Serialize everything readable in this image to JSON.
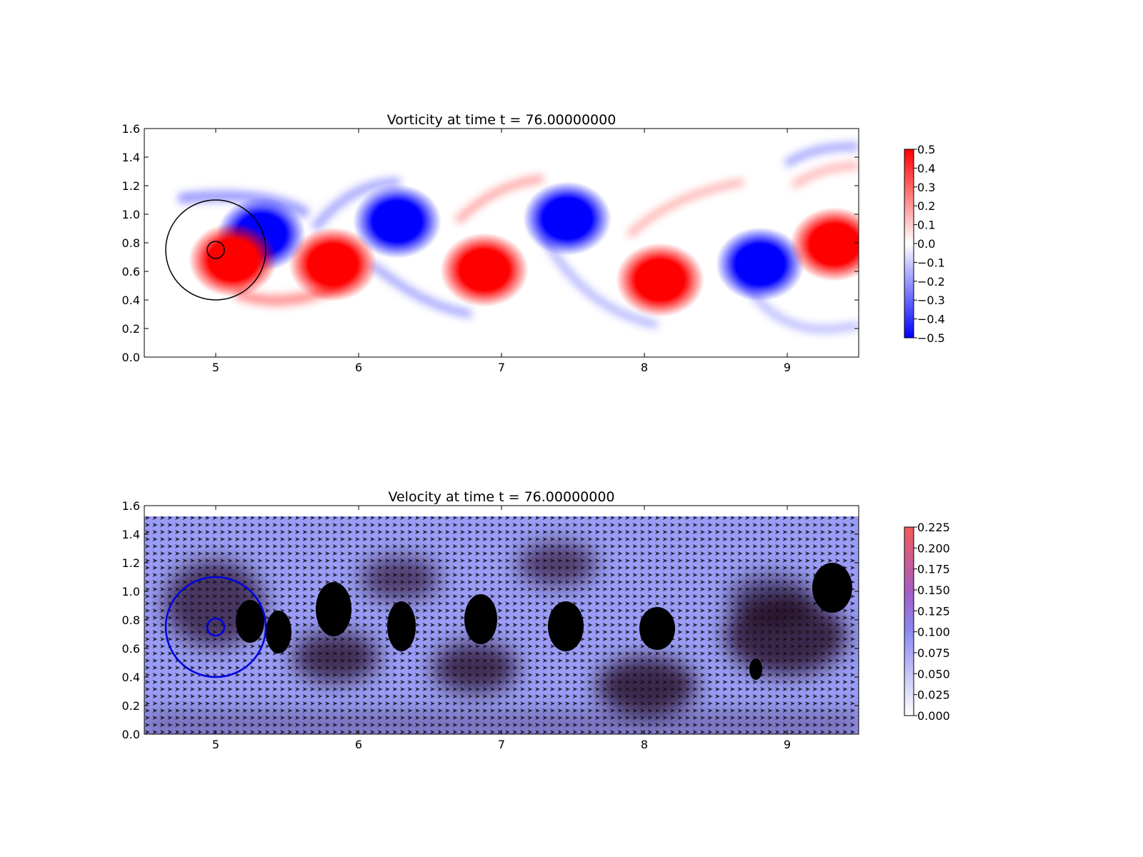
{
  "chart_data": [
    {
      "type": "heatmap",
      "title": "Vorticity at time t =    76.00000000",
      "xlim": [
        4.5,
        9.5
      ],
      "ylim": [
        0.0,
        1.6
      ],
      "xticks": [
        "5",
        "6",
        "7",
        "8",
        "9"
      ],
      "yticks": [
        "0.0",
        "0.2",
        "0.4",
        "0.6",
        "0.8",
        "1.0",
        "1.2",
        "1.4",
        "1.6"
      ],
      "colormap": "bwr",
      "colorbar": {
        "range": [
          -0.5,
          0.5
        ],
        "ticks": [
          "0.5",
          "0.4",
          "0.3",
          "0.2",
          "0.1",
          "0.0",
          "−0.1",
          "−0.2",
          "−0.3",
          "−0.4",
          "−0.5"
        ]
      },
      "vortices": [
        {
          "x": 5.32,
          "y": 0.86,
          "sign": -1
        },
        {
          "x": 5.12,
          "y": 0.68,
          "sign": 1
        },
        {
          "x": 5.82,
          "y": 0.65,
          "sign": 1
        },
        {
          "x": 6.27,
          "y": 0.95,
          "sign": -1
        },
        {
          "x": 6.88,
          "y": 0.61,
          "sign": 1
        },
        {
          "x": 7.46,
          "y": 0.97,
          "sign": -1
        },
        {
          "x": 8.11,
          "y": 0.54,
          "sign": 1
        },
        {
          "x": 8.81,
          "y": 0.65,
          "sign": -1
        },
        {
          "x": 9.33,
          "y": 0.79,
          "sign": 1
        }
      ],
      "circles": [
        {
          "x": 5.0,
          "y": 0.75,
          "r": 0.35
        },
        {
          "x": 5.0,
          "y": 0.75,
          "r": 0.06
        }
      ]
    },
    {
      "type": "heatmap",
      "title": "Velocity at time t =    76.00000000",
      "xlim": [
        4.5,
        9.5
      ],
      "ylim": [
        0.0,
        1.6
      ],
      "xticks": [
        "5",
        "6",
        "7",
        "8",
        "9"
      ],
      "yticks": [
        "0.0",
        "0.2",
        "0.4",
        "0.6",
        "0.8",
        "1.0",
        "1.2",
        "1.4",
        "1.6"
      ],
      "quiver": true,
      "colorbar": {
        "range": [
          0.0,
          0.225
        ],
        "ticks": [
          "0.225",
          "0.200",
          "0.175",
          "0.150",
          "0.125",
          "0.100",
          "0.075",
          "0.050",
          "0.025",
          "0.000"
        ]
      },
      "circles": [
        {
          "x": 5.0,
          "y": 0.75,
          "r": 0.35
        },
        {
          "x": 5.0,
          "y": 0.75,
          "r": 0.06
        }
      ]
    }
  ],
  "colors": {
    "positive": "#ff0000",
    "negative": "#0000ff",
    "velocity_low": "#9a9cf5",
    "velocity_high": "#f25a5a",
    "obstacle_outline_top": "#000000",
    "obstacle_outline_bottom": "#0000dd"
  }
}
